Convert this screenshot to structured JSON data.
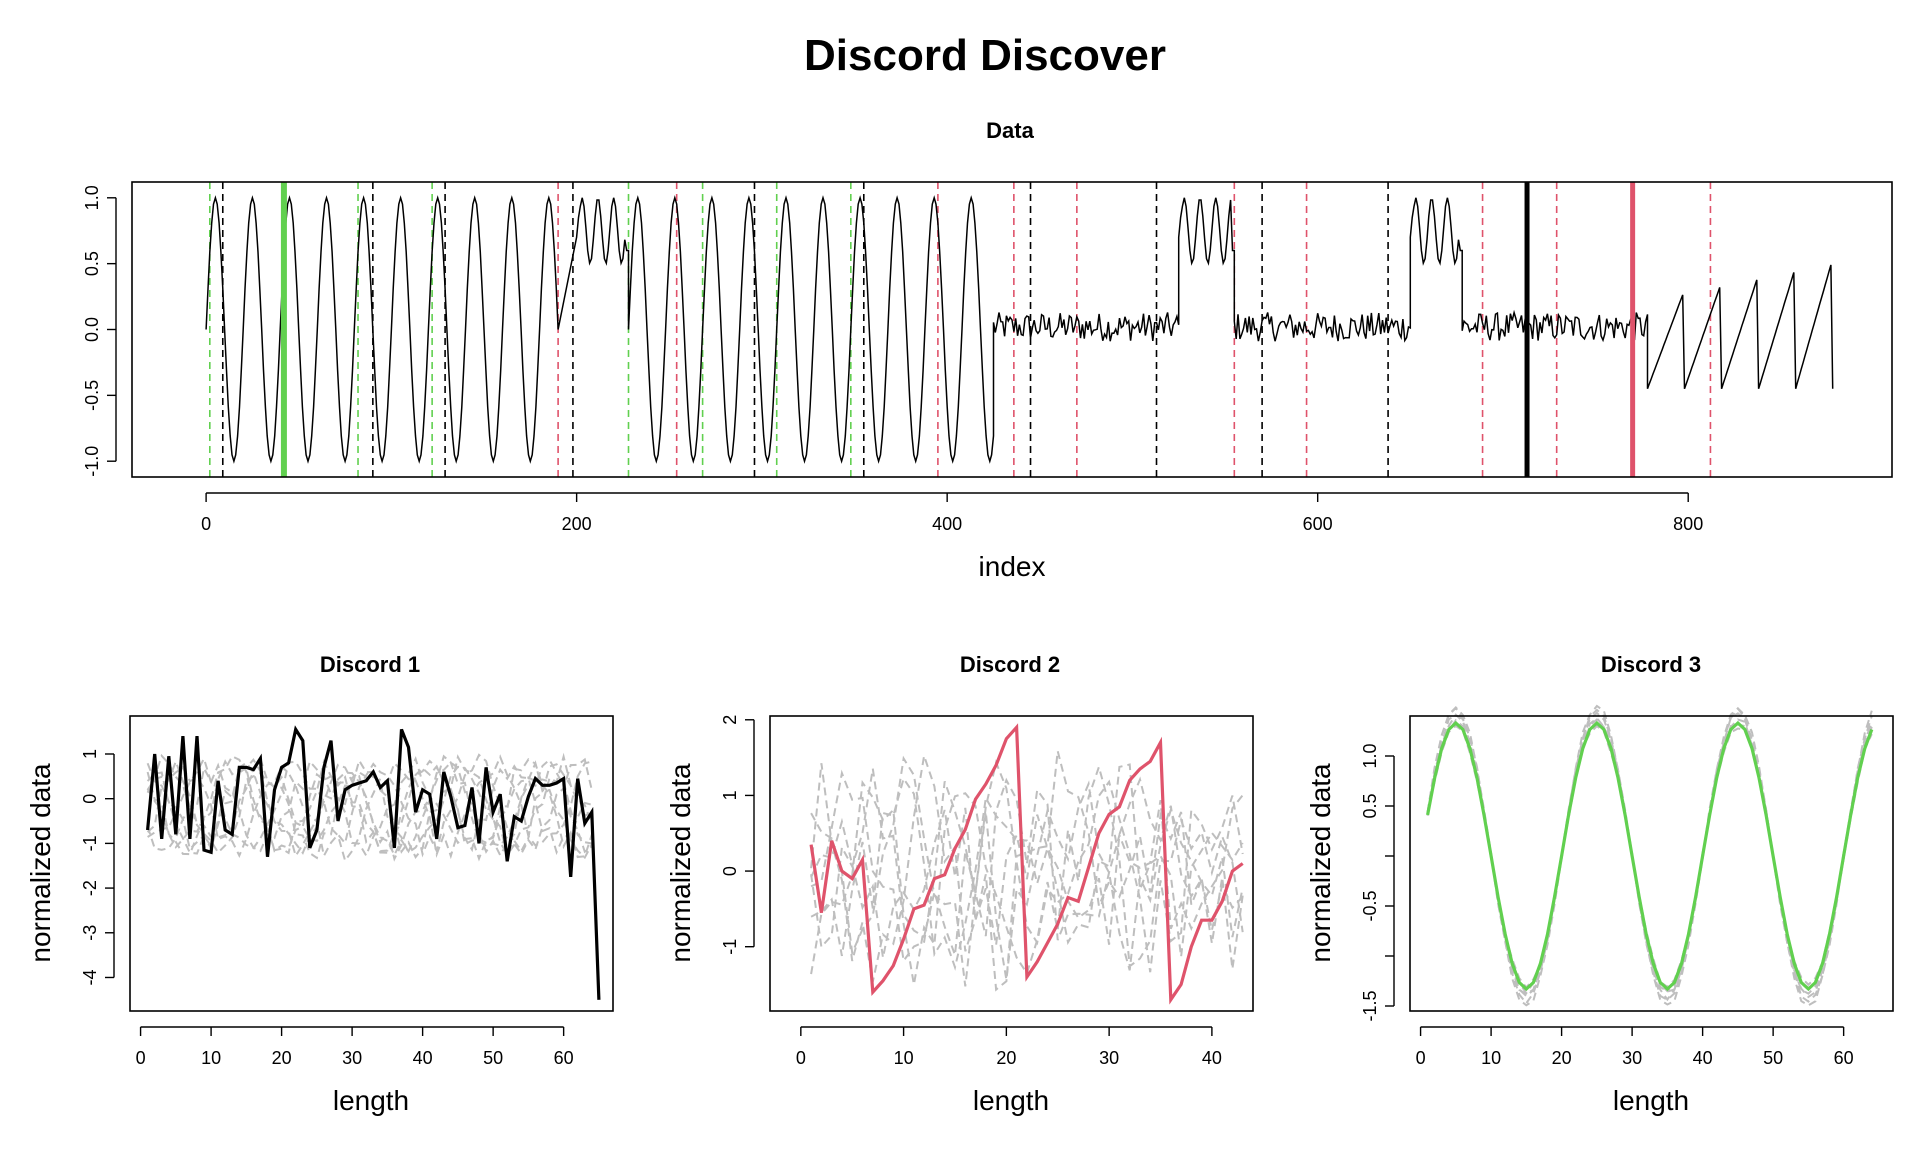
{
  "title": "Discord Discover",
  "colors": {
    "black": "#000000",
    "red": "#DF536B",
    "green": "#61D04F",
    "gray": "#BEBEBE"
  },
  "chart_data": [
    {
      "type": "line",
      "title": "Data",
      "xlabel": "index",
      "ylabel": "",
      "xlim": [
        -40,
        910
      ],
      "ylim": [
        -1.12,
        1.12
      ],
      "xticks": [
        0,
        200,
        400,
        600,
        800
      ],
      "yticks": [
        -1.0,
        -0.5,
        0.0,
        0.5,
        1.0
      ],
      "ytick_labels": [
        "-1.0",
        "-0.5",
        "0.0",
        "0.5",
        "1.0"
      ],
      "grid": false,
      "series": [
        {
          "segments": [
            {
              "kind": "sine",
              "x": [
                0,
                190
              ],
              "period": 20,
              "amp": 1
            },
            {
              "kind": "bumps",
              "x": [
                200,
                228
              ]
            },
            {
              "kind": "sine",
              "x": [
                228,
                425
              ],
              "period": 20,
              "amp": 1
            },
            {
              "kind": "noise",
              "x": [
                425,
                525
              ]
            },
            {
              "kind": "bumps",
              "x": [
                525,
                555
              ]
            },
            {
              "kind": "noise",
              "x": [
                555,
                650
              ]
            },
            {
              "kind": "bumps",
              "x": [
                650,
                678
              ]
            },
            {
              "kind": "noise",
              "x": [
                678,
                778
              ]
            },
            {
              "kind": "saw",
              "x": [
                778,
                878
              ]
            }
          ]
        }
      ],
      "markers": {
        "green_dashed": [
          2,
          82,
          122,
          228,
          268,
          308,
          348
        ],
        "black_dashed": [
          9,
          90,
          129,
          198,
          296,
          355,
          445,
          513,
          570,
          638
        ],
        "red_dashed": [
          190,
          254,
          395,
          436,
          470,
          555,
          594,
          689,
          729,
          812
        ],
        "green_solid": [
          42
        ],
        "black_solid": [
          713
        ],
        "red_solid": [
          770
        ]
      }
    },
    {
      "type": "line",
      "title": "Discord 1",
      "xlabel": "length",
      "ylabel": "normalized data",
      "xlim": [
        -1.5,
        67
      ],
      "ylim": [
        -4.75,
        1.85
      ],
      "xticks": [
        0,
        10,
        20,
        30,
        40,
        50,
        60
      ],
      "yticks": [
        -4,
        -3,
        -2,
        -1,
        0,
        1
      ],
      "ytick_labels": [
        "-4",
        "-3",
        "-2",
        "-1",
        "0",
        "1"
      ],
      "grid": false,
      "series": [
        {
          "name": "",
          "color": "black",
          "values": [
            -0.7,
            1.0,
            -0.9,
            0.95,
            -0.8,
            1.4,
            -0.9,
            1.4,
            -1.15,
            -1.2,
            0.4,
            -0.7,
            -0.8,
            0.7,
            0.7,
            0.65,
            0.9,
            -1.3,
            0.2,
            0.7,
            0.8,
            1.55,
            1.3,
            -1.1,
            -0.7,
            0.7,
            1.3,
            -0.5,
            0.2,
            0.3,
            0.35,
            0.4,
            0.6,
            0.25,
            0.4,
            -1.1,
            1.55,
            1.15,
            -0.3,
            0.2,
            0.1,
            -0.9,
            0.6,
            0.05,
            -0.65,
            -0.6,
            0.25,
            -1.0,
            0.7,
            -0.3,
            0.1,
            -1.4,
            -0.4,
            -0.5,
            0.05,
            0.45,
            0.3,
            0.3,
            0.35,
            0.45,
            -1.75,
            0.45,
            -0.55,
            -0.3,
            -4.5
          ]
        }
      ],
      "background_series_count": 9
    },
    {
      "type": "line",
      "title": "Discord 2",
      "xlabel": "length",
      "ylabel": "normalized data",
      "xlim": [
        -3,
        44
      ],
      "ylim": [
        -1.85,
        2.05
      ],
      "xticks": [
        0,
        10,
        20,
        30,
        40
      ],
      "yticks": [
        -1,
        0,
        1,
        2
      ],
      "ytick_labels": [
        "-1",
        "0",
        "1",
        "2"
      ],
      "grid": false,
      "series": [
        {
          "name": "",
          "color": "red",
          "values": [
            0.35,
            -0.55,
            0.4,
            0.0,
            -0.1,
            0.15,
            -1.6,
            -1.45,
            -1.25,
            -0.9,
            -0.5,
            -0.45,
            -0.1,
            -0.05,
            0.3,
            0.55,
            0.95,
            1.15,
            1.4,
            1.75,
            1.9,
            -1.4,
            -1.2,
            -0.95,
            -0.7,
            -0.35,
            -0.4,
            0.05,
            0.5,
            0.75,
            0.85,
            1.2,
            1.35,
            1.45,
            1.7,
            -1.7,
            -1.5,
            -1.0,
            -0.65,
            -0.65,
            -0.4,
            0.0,
            0.1
          ]
        }
      ],
      "background_series_count": 7
    },
    {
      "type": "line",
      "title": "Discord 3",
      "xlabel": "length",
      "ylabel": "normalized data",
      "xlim": [
        -1.5,
        67
      ],
      "ylim": [
        -1.55,
        1.4
      ],
      "xticks": [
        0,
        10,
        20,
        30,
        40,
        50,
        60
      ],
      "yticks": [
        -1.5,
        -1.0,
        -0.5,
        0.0,
        0.5,
        1.0
      ],
      "ytick_labels": [
        "-1.5",
        "",
        "-0.5",
        "",
        "0.5",
        "1.0"
      ],
      "grid": false,
      "series": [
        {
          "name": "",
          "color": "green",
          "kind": "sine",
          "n": 64,
          "period": 20,
          "amp": 1.33,
          "peak_at": 5
        }
      ],
      "background_series_count": 6
    }
  ]
}
